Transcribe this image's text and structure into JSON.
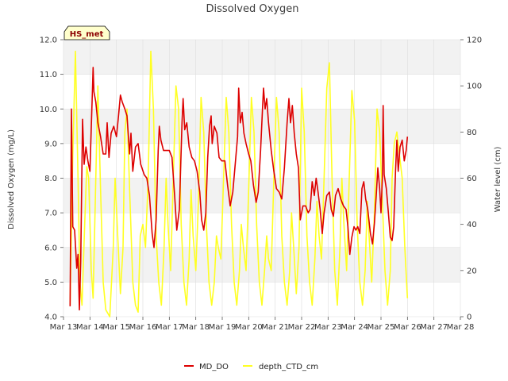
{
  "chart_data": {
    "type": "line",
    "title": "Dissolved Oxygen",
    "xlabel": "",
    "ylabel": "Dissolved Oxygen (mg/L)",
    "y2label": "Water level (cm)",
    "badge": "HS_met",
    "x_ticks": [
      "Mar 13",
      "Mar 14",
      "Mar 15",
      "Mar 16",
      "Mar 17",
      "Mar 18",
      "Mar 19",
      "Mar 20",
      "Mar 21",
      "Mar 22",
      "Mar 23",
      "Mar 24",
      "Mar 25",
      "Mar 26",
      "Mar 27",
      "Mar 28"
    ],
    "xlim": [
      13,
      28
    ],
    "ylim": [
      4.0,
      12.0
    ],
    "y_ticks": [
      "4.0",
      "5.0",
      "6.0",
      "7.0",
      "8.0",
      "9.0",
      "10.0",
      "11.0",
      "12.0"
    ],
    "y2lim": [
      0,
      120
    ],
    "y2_ticks": [
      "0",
      "20",
      "40",
      "60",
      "80",
      "100",
      "120"
    ],
    "grid": true,
    "legend_position": "bottom-center",
    "colors": {
      "MD_DO": "#dd0000",
      "depth_CTD_cm": "#ffff22",
      "band": "#f2f2f2",
      "grid": "#dddddd"
    },
    "series": [
      {
        "name": "MD_DO",
        "axis": "left",
        "points": [
          [
            13.25,
            4.3
          ],
          [
            13.3,
            10.0
          ],
          [
            13.35,
            6.6
          ],
          [
            13.42,
            6.5
          ],
          [
            13.5,
            5.4
          ],
          [
            13.55,
            5.8
          ],
          [
            13.6,
            4.2
          ],
          [
            13.65,
            5.6
          ],
          [
            13.72,
            9.7
          ],
          [
            13.78,
            8.4
          ],
          [
            13.85,
            8.9
          ],
          [
            13.92,
            8.5
          ],
          [
            14.0,
            8.2
          ],
          [
            14.08,
            10.2
          ],
          [
            14.12,
            11.2
          ],
          [
            14.15,
            10.5
          ],
          [
            14.22,
            10.2
          ],
          [
            14.3,
            9.6
          ],
          [
            14.4,
            9.2
          ],
          [
            14.5,
            8.7
          ],
          [
            14.6,
            8.7
          ],
          [
            14.65,
            9.6
          ],
          [
            14.72,
            8.6
          ],
          [
            14.8,
            9.3
          ],
          [
            14.9,
            9.5
          ],
          [
            15.0,
            9.2
          ],
          [
            15.08,
            9.8
          ],
          [
            15.15,
            10.4
          ],
          [
            15.22,
            10.2
          ],
          [
            15.32,
            10.0
          ],
          [
            15.4,
            9.8
          ],
          [
            15.5,
            8.7
          ],
          [
            15.55,
            9.3
          ],
          [
            15.62,
            8.2
          ],
          [
            15.72,
            8.9
          ],
          [
            15.82,
            9.0
          ],
          [
            15.92,
            8.4
          ],
          [
            16.05,
            8.1
          ],
          [
            16.15,
            8.0
          ],
          [
            16.25,
            7.5
          ],
          [
            16.35,
            6.4
          ],
          [
            16.42,
            6.0
          ],
          [
            16.5,
            6.8
          ],
          [
            16.58,
            8.8
          ],
          [
            16.62,
            9.5
          ],
          [
            16.68,
            9.1
          ],
          [
            16.78,
            8.8
          ],
          [
            16.9,
            8.8
          ],
          [
            17.0,
            8.8
          ],
          [
            17.1,
            8.6
          ],
          [
            17.2,
            7.5
          ],
          [
            17.28,
            6.5
          ],
          [
            17.38,
            7.1
          ],
          [
            17.48,
            9.6
          ],
          [
            17.52,
            10.3
          ],
          [
            17.58,
            9.4
          ],
          [
            17.66,
            9.6
          ],
          [
            17.75,
            8.9
          ],
          [
            17.85,
            8.6
          ],
          [
            17.95,
            8.5
          ],
          [
            18.05,
            8.2
          ],
          [
            18.15,
            7.6
          ],
          [
            18.22,
            6.8
          ],
          [
            18.3,
            6.5
          ],
          [
            18.38,
            7.0
          ],
          [
            18.45,
            8.6
          ],
          [
            18.52,
            9.5
          ],
          [
            18.58,
            9.8
          ],
          [
            18.62,
            9.0
          ],
          [
            18.7,
            9.5
          ],
          [
            18.8,
            9.3
          ],
          [
            18.88,
            8.6
          ],
          [
            18.98,
            8.5
          ],
          [
            19.1,
            8.5
          ],
          [
            19.2,
            7.8
          ],
          [
            19.3,
            7.2
          ],
          [
            19.4,
            7.6
          ],
          [
            19.5,
            8.5
          ],
          [
            19.58,
            9.2
          ],
          [
            19.62,
            10.6
          ],
          [
            19.68,
            9.6
          ],
          [
            19.75,
            9.9
          ],
          [
            19.82,
            9.3
          ],
          [
            19.9,
            9.0
          ],
          [
            20.0,
            8.7
          ],
          [
            20.08,
            8.5
          ],
          [
            20.18,
            7.8
          ],
          [
            20.28,
            7.3
          ],
          [
            20.36,
            7.6
          ],
          [
            20.45,
            8.8
          ],
          [
            20.52,
            10.0
          ],
          [
            20.56,
            10.6
          ],
          [
            20.62,
            10.0
          ],
          [
            20.68,
            10.3
          ],
          [
            20.75,
            9.6
          ],
          [
            20.85,
            8.8
          ],
          [
            20.95,
            8.2
          ],
          [
            21.05,
            7.7
          ],
          [
            21.15,
            7.6
          ],
          [
            21.25,
            7.4
          ],
          [
            21.35,
            8.3
          ],
          [
            21.45,
            9.6
          ],
          [
            21.52,
            10.3
          ],
          [
            21.58,
            9.6
          ],
          [
            21.65,
            10.1
          ],
          [
            21.72,
            9.3
          ],
          [
            21.8,
            8.7
          ],
          [
            21.88,
            8.3
          ],
          [
            21.95,
            6.8
          ],
          [
            22.05,
            7.2
          ],
          [
            22.15,
            7.2
          ],
          [
            22.25,
            7.0
          ],
          [
            22.32,
            7.1
          ],
          [
            22.4,
            7.9
          ],
          [
            22.48,
            7.5
          ],
          [
            22.55,
            8.0
          ],
          [
            22.62,
            7.6
          ],
          [
            22.7,
            7.1
          ],
          [
            22.78,
            6.4
          ],
          [
            22.85,
            7.0
          ],
          [
            22.95,
            7.5
          ],
          [
            23.05,
            7.6
          ],
          [
            23.12,
            7.1
          ],
          [
            23.2,
            6.9
          ],
          [
            23.28,
            7.5
          ],
          [
            23.38,
            7.7
          ],
          [
            23.48,
            7.4
          ],
          [
            23.58,
            7.2
          ],
          [
            23.68,
            7.1
          ],
          [
            23.75,
            6.6
          ],
          [
            23.82,
            5.8
          ],
          [
            23.9,
            6.3
          ],
          [
            23.98,
            6.6
          ],
          [
            24.05,
            6.5
          ],
          [
            24.12,
            6.6
          ],
          [
            24.2,
            6.4
          ],
          [
            24.28,
            7.7
          ],
          [
            24.35,
            7.9
          ],
          [
            24.42,
            7.4
          ],
          [
            24.5,
            7.1
          ],
          [
            24.6,
            6.4
          ],
          [
            24.68,
            6.1
          ],
          [
            24.75,
            6.7
          ],
          [
            24.82,
            7.5
          ],
          [
            24.88,
            8.3
          ],
          [
            24.95,
            7.7
          ],
          [
            25.0,
            7.0
          ],
          [
            25.05,
            8.0
          ],
          [
            25.08,
            10.1
          ],
          [
            25.12,
            8.1
          ],
          [
            25.2,
            7.7
          ],
          [
            25.28,
            7.0
          ],
          [
            25.35,
            6.3
          ],
          [
            25.42,
            6.2
          ],
          [
            25.48,
            6.6
          ],
          [
            25.55,
            8.2
          ],
          [
            25.6,
            9.1
          ],
          [
            25.65,
            8.2
          ],
          [
            25.72,
            8.9
          ],
          [
            25.8,
            9.1
          ],
          [
            25.88,
            8.5
          ],
          [
            25.95,
            8.8
          ],
          [
            26.0,
            9.2
          ]
        ]
      },
      {
        "name": "depth_CTD_cm",
        "axis": "right",
        "points": [
          [
            13.25,
            5
          ],
          [
            13.35,
            70
          ],
          [
            13.45,
            115
          ],
          [
            13.55,
            60
          ],
          [
            13.62,
            15
          ],
          [
            13.7,
            5
          ],
          [
            13.8,
            40
          ],
          [
            13.88,
            65
          ],
          [
            13.95,
            60
          ],
          [
            14.05,
            20
          ],
          [
            14.12,
            8
          ],
          [
            14.22,
            60
          ],
          [
            14.3,
            100
          ],
          [
            14.4,
            55
          ],
          [
            14.5,
            15
          ],
          [
            14.6,
            3
          ],
          [
            14.75,
            0
          ],
          [
            14.88,
            30
          ],
          [
            14.95,
            60
          ],
          [
            15.05,
            35
          ],
          [
            15.15,
            10
          ],
          [
            15.25,
            30
          ],
          [
            15.32,
            80
          ],
          [
            15.4,
            90
          ],
          [
            15.5,
            55
          ],
          [
            15.62,
            15
          ],
          [
            15.72,
            5
          ],
          [
            15.82,
            2
          ],
          [
            15.9,
            35
          ],
          [
            16.0,
            40
          ],
          [
            16.1,
            30
          ],
          [
            16.2,
            60
          ],
          [
            16.3,
            115
          ],
          [
            16.4,
            90
          ],
          [
            16.5,
            35
          ],
          [
            16.6,
            15
          ],
          [
            16.7,
            5
          ],
          [
            16.8,
            30
          ],
          [
            16.88,
            60
          ],
          [
            16.95,
            40
          ],
          [
            17.05,
            20
          ],
          [
            17.15,
            60
          ],
          [
            17.25,
            100
          ],
          [
            17.35,
            90
          ],
          [
            17.45,
            40
          ],
          [
            17.55,
            15
          ],
          [
            17.65,
            5
          ],
          [
            17.75,
            25
          ],
          [
            17.82,
            55
          ],
          [
            17.9,
            35
          ],
          [
            18.0,
            20
          ],
          [
            18.1,
            50
          ],
          [
            18.2,
            95
          ],
          [
            18.3,
            80
          ],
          [
            18.4,
            40
          ],
          [
            18.5,
            15
          ],
          [
            18.6,
            5
          ],
          [
            18.7,
            15
          ],
          [
            18.78,
            35
          ],
          [
            18.85,
            30
          ],
          [
            18.95,
            25
          ],
          [
            19.05,
            60
          ],
          [
            19.15,
            95
          ],
          [
            19.25,
            80
          ],
          [
            19.35,
            40
          ],
          [
            19.45,
            15
          ],
          [
            19.55,
            5
          ],
          [
            19.65,
            20
          ],
          [
            19.72,
            40
          ],
          [
            19.8,
            30
          ],
          [
            19.9,
            20
          ],
          [
            20.0,
            55
          ],
          [
            20.1,
            95
          ],
          [
            20.2,
            80
          ],
          [
            20.3,
            40
          ],
          [
            20.4,
            15
          ],
          [
            20.5,
            5
          ],
          [
            20.6,
            20
          ],
          [
            20.68,
            35
          ],
          [
            20.75,
            25
          ],
          [
            20.85,
            20
          ],
          [
            20.95,
            60
          ],
          [
            21.05,
            95
          ],
          [
            21.15,
            80
          ],
          [
            21.25,
            35
          ],
          [
            21.35,
            15
          ],
          [
            21.45,
            5
          ],
          [
            21.55,
            20
          ],
          [
            21.62,
            45
          ],
          [
            21.7,
            30
          ],
          [
            21.8,
            10
          ],
          [
            21.9,
            30
          ],
          [
            22.0,
            99
          ],
          [
            22.1,
            80
          ],
          [
            22.2,
            35
          ],
          [
            22.3,
            15
          ],
          [
            22.4,
            5
          ],
          [
            22.5,
            25
          ],
          [
            22.58,
            50
          ],
          [
            22.66,
            35
          ],
          [
            22.75,
            25
          ],
          [
            22.85,
            60
          ],
          [
            22.95,
            99
          ],
          [
            23.05,
            110
          ],
          [
            23.15,
            60
          ],
          [
            23.25,
            20
          ],
          [
            23.35,
            5
          ],
          [
            23.45,
            30
          ],
          [
            23.52,
            60
          ],
          [
            23.6,
            40
          ],
          [
            23.7,
            20
          ],
          [
            23.8,
            60
          ],
          [
            23.9,
            98
          ],
          [
            24.0,
            85
          ],
          [
            24.1,
            40
          ],
          [
            24.2,
            15
          ],
          [
            24.3,
            5
          ],
          [
            24.4,
            20
          ],
          [
            24.48,
            50
          ],
          [
            24.55,
            35
          ],
          [
            24.65,
            15
          ],
          [
            24.75,
            45
          ],
          [
            24.85,
            90
          ],
          [
            24.95,
            80
          ],
          [
            25.05,
            50
          ],
          [
            25.15,
            20
          ],
          [
            25.25,
            5
          ],
          [
            25.35,
            20
          ],
          [
            25.42,
            60
          ],
          [
            25.5,
            75
          ],
          [
            25.6,
            80
          ],
          [
            25.7,
            70
          ],
          [
            25.8,
            60
          ],
          [
            25.9,
            30
          ],
          [
            26.0,
            8
          ]
        ]
      }
    ]
  }
}
